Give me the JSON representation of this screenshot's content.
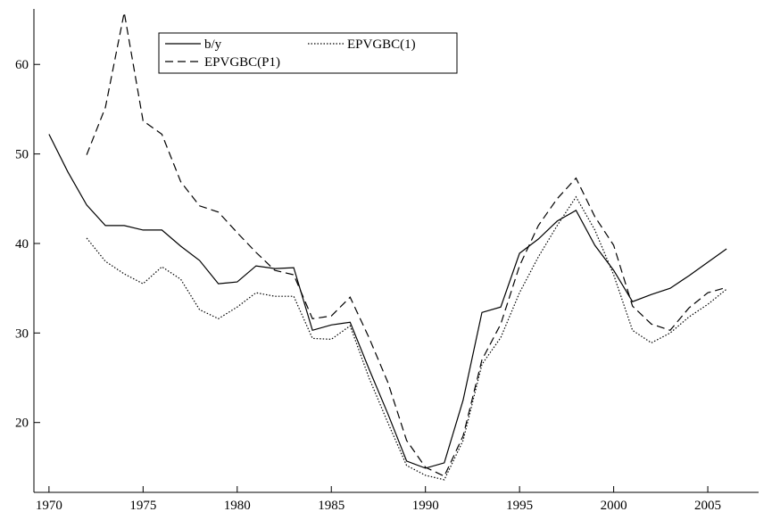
{
  "chart_data": {
    "type": "line",
    "x": [
      1970,
      1971,
      1972,
      1973,
      1974,
      1975,
      1976,
      1977,
      1978,
      1979,
      1980,
      1981,
      1982,
      1983,
      1984,
      1985,
      1986,
      1987,
      1988,
      1989,
      1990,
      1991,
      1992,
      1993,
      1994,
      1995,
      1996,
      1997,
      1998,
      1999,
      2000,
      2001,
      2002,
      2003,
      2004,
      2005,
      2006
    ],
    "series": [
      {
        "name": "b/y",
        "color": "#000000",
        "style": "solid",
        "values": [
          52.2,
          48,
          44.3,
          42.0,
          42.0,
          41.5,
          41.5,
          39.7,
          38.1,
          35.5,
          35.7,
          37.5,
          37.2,
          37.3,
          30.3,
          30.9,
          31.2,
          26,
          21,
          15.7,
          14.9,
          15.5,
          22.5,
          32.3,
          32.9,
          38.9,
          40.5,
          42.5,
          43.7,
          39.8,
          37.0,
          33.5,
          34.3,
          35.0,
          36.4,
          37.9,
          39.4
        ]
      },
      {
        "name": "EPVGBC(1)",
        "color": "#000000",
        "style": "dotted",
        "values": [
          null,
          null,
          40.6,
          38.0,
          36.6,
          35.5,
          37.4,
          36.0,
          32.6,
          31.6,
          32.9,
          34.5,
          34.1,
          34.1,
          29.4,
          29.3,
          30.8,
          25,
          20,
          15.2,
          14.1,
          13.6,
          18,
          26.5,
          29.5,
          34.5,
          38.5,
          42.0,
          45.2,
          41.5,
          36.5,
          30.3,
          28.9,
          30.0,
          31.8,
          33.2,
          34.9
        ]
      },
      {
        "name": "EPVGBC(P1)",
        "color": "#000000",
        "style": "dashed",
        "values": [
          null,
          null,
          49.9,
          55.2,
          65.8,
          53.7,
          52.2,
          46.9,
          44.2,
          43.5,
          41.2,
          39.0,
          37.0,
          36.5,
          31.6,
          31.9,
          34.0,
          29.5,
          24.5,
          18.0,
          15.0,
          14.0,
          18.5,
          27.0,
          31.0,
          37.5,
          42.0,
          45.0,
          47.3,
          43.0,
          39.8,
          33.0,
          31.0,
          30.3,
          32.8,
          34.5,
          35.1
        ]
      }
    ],
    "xlim": [
      1969.2,
      2007.7
    ],
    "xticks": [
      1970,
      1975,
      1980,
      1985,
      1990,
      1995,
      2000,
      2005
    ],
    "ylim": [
      12.2,
      66.2
    ],
    "yticks": [
      20,
      30,
      40,
      50,
      60
    ],
    "grid": false
  }
}
